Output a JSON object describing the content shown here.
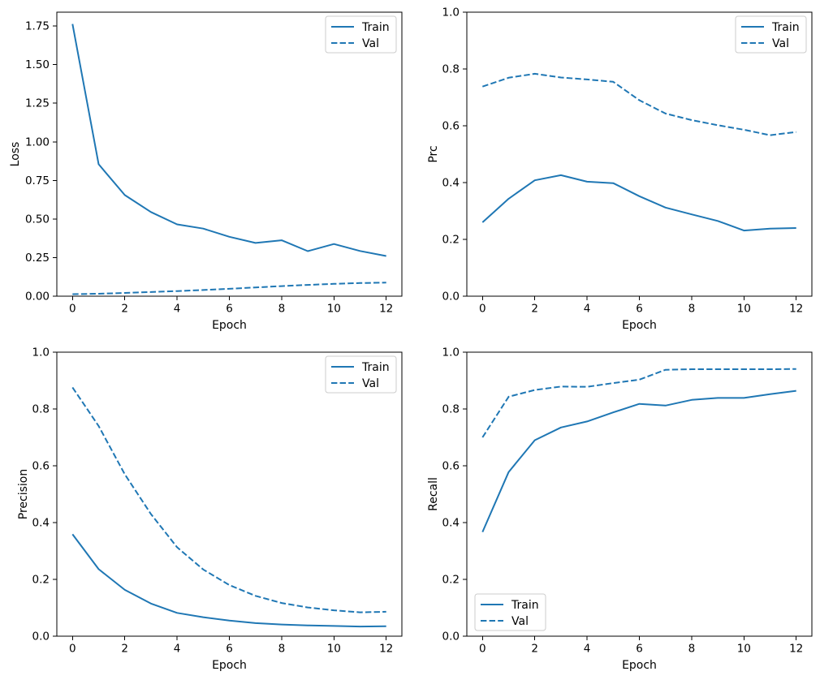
{
  "figure": {
    "background": "#ffffff",
    "line_color": "#1f77b4",
    "legend_border_color": "#cccccc",
    "text_color": "#000000"
  },
  "chart_data": [
    {
      "id": "loss",
      "type": "line",
      "title": "",
      "xlabel": "Epoch",
      "ylabel": "Loss",
      "x": [
        0,
        1,
        2,
        3,
        4,
        5,
        6,
        7,
        8,
        9,
        10,
        11,
        12
      ],
      "xlim": [
        -0.6,
        12.6
      ],
      "ylim": [
        0,
        1.84
      ],
      "grid": false,
      "xtick_values": [
        0,
        2,
        4,
        6,
        8,
        10,
        12
      ],
      "xtick_labels": [
        "0",
        "2",
        "4",
        "6",
        "8",
        "10",
        "12"
      ],
      "ytick_values": [
        0,
        0.25,
        0.5,
        0.75,
        1.0,
        1.25,
        1.5,
        1.75
      ],
      "ytick_labels": [
        "0.00",
        "0.25",
        "0.50",
        "0.75",
        "1.00",
        "1.25",
        "1.50",
        "1.75"
      ],
      "series": [
        {
          "name": "Train",
          "style": "solid",
          "values": [
            1.763,
            0.855,
            0.655,
            0.545,
            0.465,
            0.438,
            0.385,
            0.345,
            0.362,
            0.292,
            0.338,
            0.293,
            0.26
          ]
        },
        {
          "name": "Val",
          "style": "dashed",
          "values": [
            0.013,
            0.016,
            0.021,
            0.027,
            0.033,
            0.04,
            0.048,
            0.057,
            0.065,
            0.073,
            0.08,
            0.085,
            0.088
          ]
        }
      ],
      "legend": {
        "position": "upper-right",
        "labels": [
          "Train",
          "Val"
        ]
      }
    },
    {
      "id": "prc",
      "type": "line",
      "title": "",
      "xlabel": "Epoch",
      "ylabel": "Prc",
      "x": [
        0,
        1,
        2,
        3,
        4,
        5,
        6,
        7,
        8,
        9,
        10,
        11,
        12
      ],
      "xlim": [
        -0.6,
        12.6
      ],
      "ylim": [
        0,
        1.0
      ],
      "grid": false,
      "xtick_values": [
        0,
        2,
        4,
        6,
        8,
        10,
        12
      ],
      "xtick_labels": [
        "0",
        "2",
        "4",
        "6",
        "8",
        "10",
        "12"
      ],
      "ytick_values": [
        0,
        0.2,
        0.4,
        0.6,
        0.8,
        1.0
      ],
      "ytick_labels": [
        "0.0",
        "0.2",
        "0.4",
        "0.6",
        "0.8",
        "1.0"
      ],
      "series": [
        {
          "name": "Train",
          "style": "solid",
          "values": [
            0.26,
            0.343,
            0.408,
            0.426,
            0.403,
            0.398,
            0.352,
            0.312,
            0.288,
            0.265,
            0.231,
            0.238,
            0.24
          ]
        },
        {
          "name": "Val",
          "style": "dashed",
          "values": [
            0.738,
            0.769,
            0.783,
            0.77,
            0.763,
            0.755,
            0.69,
            0.643,
            0.62,
            0.602,
            0.586,
            0.567,
            0.578
          ]
        }
      ],
      "legend": {
        "position": "upper-right",
        "labels": [
          "Train",
          "Val"
        ]
      }
    },
    {
      "id": "precision",
      "type": "line",
      "title": "",
      "xlabel": "Epoch",
      "ylabel": "Precision",
      "x": [
        0,
        1,
        2,
        3,
        4,
        5,
        6,
        7,
        8,
        9,
        10,
        11,
        12
      ],
      "xlim": [
        -0.6,
        12.6
      ],
      "ylim": [
        0,
        1.0
      ],
      "grid": false,
      "xtick_values": [
        0,
        2,
        4,
        6,
        8,
        10,
        12
      ],
      "xtick_labels": [
        "0",
        "2",
        "4",
        "6",
        "8",
        "10",
        "12"
      ],
      "ytick_values": [
        0,
        0.2,
        0.4,
        0.6,
        0.8,
        1.0
      ],
      "ytick_labels": [
        "0.0",
        "0.2",
        "0.4",
        "0.6",
        "0.8",
        "1.0"
      ],
      "series": [
        {
          "name": "Train",
          "style": "solid",
          "values": [
            0.359,
            0.236,
            0.163,
            0.115,
            0.082,
            0.067,
            0.055,
            0.046,
            0.041,
            0.038,
            0.036,
            0.034,
            0.035
          ]
        },
        {
          "name": "Val",
          "style": "dashed",
          "values": [
            0.876,
            0.74,
            0.57,
            0.43,
            0.313,
            0.235,
            0.18,
            0.142,
            0.117,
            0.101,
            0.091,
            0.084,
            0.086
          ]
        }
      ],
      "legend": {
        "position": "upper-right",
        "labels": [
          "Train",
          "Val"
        ]
      }
    },
    {
      "id": "recall",
      "type": "line",
      "title": "",
      "xlabel": "Epoch",
      "ylabel": "Recall",
      "x": [
        0,
        1,
        2,
        3,
        4,
        5,
        6,
        7,
        8,
        9,
        10,
        11,
        12
      ],
      "xlim": [
        -0.6,
        12.6
      ],
      "ylim": [
        0,
        1.0
      ],
      "grid": false,
      "xtick_values": [
        0,
        2,
        4,
        6,
        8,
        10,
        12
      ],
      "xtick_labels": [
        "0",
        "2",
        "4",
        "6",
        "8",
        "10",
        "12"
      ],
      "ytick_values": [
        0,
        0.2,
        0.4,
        0.6,
        0.8,
        1.0
      ],
      "ytick_labels": [
        "0.0",
        "0.2",
        "0.4",
        "0.6",
        "0.8",
        "1.0"
      ],
      "series": [
        {
          "name": "Train",
          "style": "solid",
          "values": [
            0.367,
            0.578,
            0.69,
            0.735,
            0.756,
            0.788,
            0.818,
            0.812,
            0.832,
            0.839,
            0.839,
            0.852,
            0.864
          ]
        },
        {
          "name": "Val",
          "style": "dashed",
          "values": [
            0.7,
            0.843,
            0.867,
            0.879,
            0.878,
            0.891,
            0.903,
            0.938,
            0.94,
            0.94,
            0.94,
            0.94,
            0.941
          ]
        }
      ],
      "legend": {
        "position": "lower-left",
        "labels": [
          "Train",
          "Val"
        ]
      }
    }
  ]
}
